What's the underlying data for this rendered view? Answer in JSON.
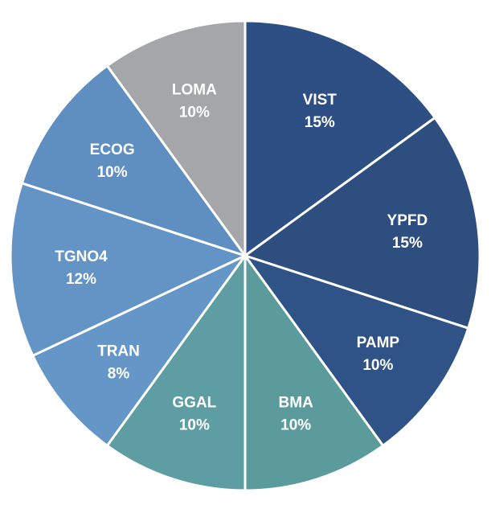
{
  "chart_data": {
    "type": "pie",
    "title": "",
    "start_angle_deg": 0,
    "direction": "clockwise",
    "slice_border_color": "#ffffff",
    "slices": [
      {
        "label": "VIST",
        "value": 15,
        "value_label": "15%",
        "color": "#2e4f83"
      },
      {
        "label": "YPFD",
        "value": 15,
        "value_label": "15%",
        "color": "#2d4e7f"
      },
      {
        "label": "PAMP",
        "value": 10,
        "value_label": "10%",
        "color": "#2f5287"
      },
      {
        "label": "BMA",
        "value": 10,
        "value_label": "10%",
        "color": "#5b9b9c"
      },
      {
        "label": "GGAL",
        "value": 10,
        "value_label": "10%",
        "color": "#5e9ea3"
      },
      {
        "label": "TRAN",
        "value": 8,
        "value_label": "8%",
        "color": "#6497c7"
      },
      {
        "label": "TGNO4",
        "value": 12,
        "value_label": "12%",
        "color": "#6494c5"
      },
      {
        "label": "ECOG",
        "value": 10,
        "value_label": "10%",
        "color": "#5f8fc1"
      },
      {
        "label": "LOMA",
        "value": 10,
        "value_label": "10%",
        "color": "#a5a6aa"
      }
    ]
  }
}
